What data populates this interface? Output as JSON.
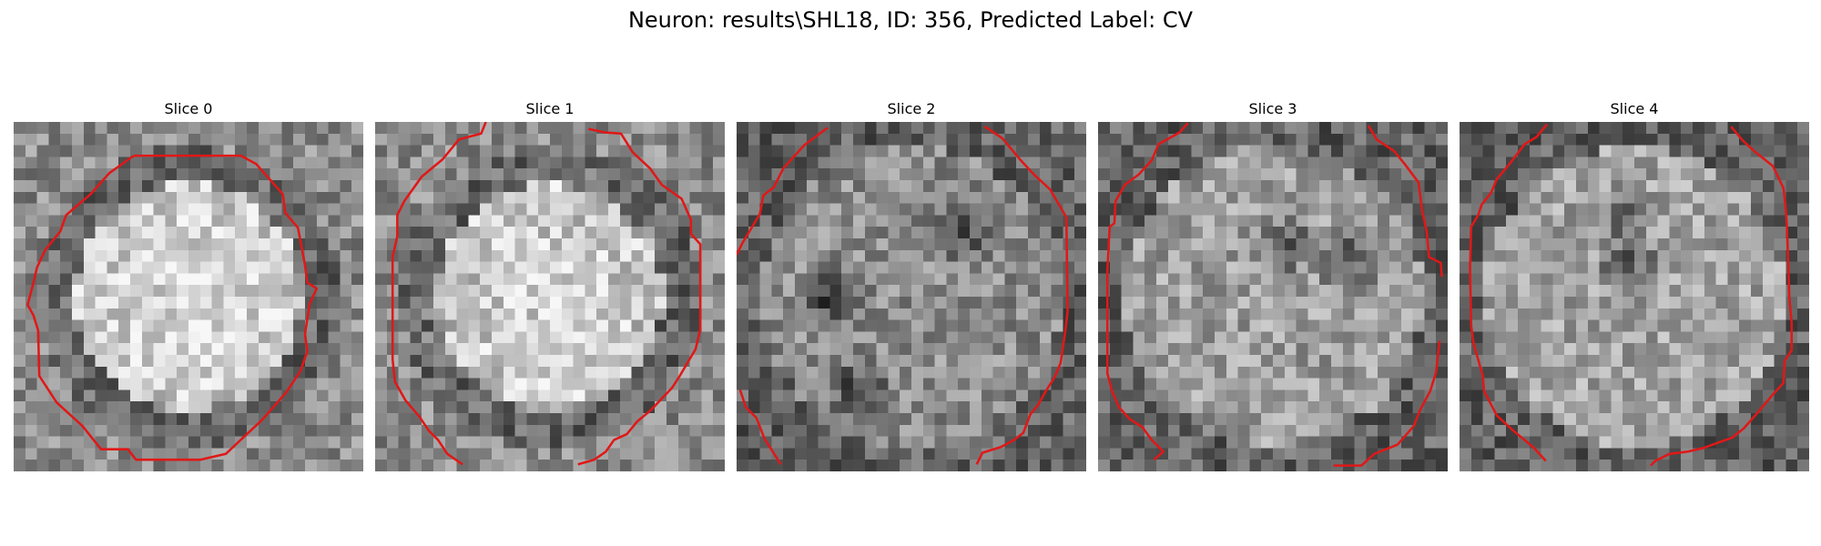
{
  "figure": {
    "title": "Neuron: results\\SHL18, ID: 356, Predicted Label: CV"
  },
  "panels": [
    {
      "title": "Slice 0",
      "seed": 11,
      "mode": "disk",
      "bright": 0.78,
      "dark_spots": []
    },
    {
      "title": "Slice 1",
      "seed": 23,
      "mode": "disk",
      "bright": 0.74,
      "dark_spots": []
    },
    {
      "title": "Slice 2",
      "seed": 37,
      "mode": "textured",
      "bright": 0.55,
      "dark_spots": [
        [
          0.24,
          0.48
        ],
        [
          0.62,
          0.3
        ],
        [
          0.34,
          0.75
        ]
      ]
    },
    {
      "title": "Slice 3",
      "seed": 41,
      "mode": "textured",
      "bright": 0.62,
      "dark_spots": [
        [
          0.53,
          0.33
        ],
        [
          0.7,
          0.38
        ]
      ]
    },
    {
      "title": "Slice 4",
      "seed": 53,
      "mode": "textured",
      "bright": 0.64,
      "dark_spots": [
        [
          0.47,
          0.4
        ],
        [
          0.45,
          0.25
        ]
      ]
    }
  ],
  "contour_color": "#e01818"
}
